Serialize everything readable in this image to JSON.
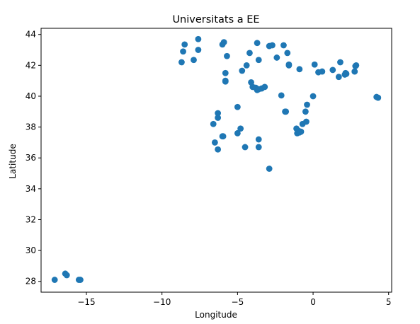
{
  "chart_data": {
    "type": "scatter",
    "title": "Universitats a EE",
    "xlabel": "Longitude",
    "ylabel": "Latitude",
    "xlim": [
      -18.0,
      5.2
    ],
    "ylim": [
      27.3,
      44.4
    ],
    "xticks": [
      -15,
      -10,
      -5,
      0,
      5
    ],
    "yticks": [
      28,
      30,
      32,
      34,
      36,
      38,
      40,
      42,
      44
    ],
    "grid": false,
    "marker_color": "#1f77b4",
    "points": [
      [
        -17.1,
        28.1
      ],
      [
        -16.4,
        28.5
      ],
      [
        -16.3,
        28.4
      ],
      [
        -15.5,
        28.1
      ],
      [
        -15.4,
        28.1
      ],
      [
        -8.7,
        42.2
      ],
      [
        -8.6,
        42.9
      ],
      [
        -8.5,
        43.35
      ],
      [
        -7.9,
        42.35
      ],
      [
        -7.6,
        43.7
      ],
      [
        -7.6,
        43.0
      ],
      [
        -6.0,
        43.35
      ],
      [
        -5.9,
        43.5
      ],
      [
        -5.7,
        42.6
      ],
      [
        -5.8,
        41.5
      ],
      [
        -5.8,
        41.0
      ],
      [
        -5.8,
        40.95
      ],
      [
        -6.3,
        38.9
      ],
      [
        -6.3,
        38.6
      ],
      [
        -6.6,
        38.2
      ],
      [
        -6.5,
        37.0
      ],
      [
        -6.0,
        37.4
      ],
      [
        -5.95,
        37.4
      ],
      [
        -6.3,
        36.55
      ],
      [
        -5.0,
        39.3
      ],
      [
        -4.8,
        37.9
      ],
      [
        -5.0,
        37.6
      ],
      [
        -4.5,
        36.7
      ],
      [
        -4.7,
        41.65
      ],
      [
        -4.4,
        42.0
      ],
      [
        -4.2,
        42.8
      ],
      [
        -3.7,
        43.45
      ],
      [
        -3.6,
        42.35
      ],
      [
        -4.1,
        40.9
      ],
      [
        -4.0,
        40.6
      ],
      [
        -3.8,
        40.55
      ],
      [
        -3.7,
        40.4
      ],
      [
        -3.6,
        40.45
      ],
      [
        -3.4,
        40.5
      ],
      [
        -3.2,
        40.6
      ],
      [
        -3.6,
        37.2
      ],
      [
        -3.6,
        36.7
      ],
      [
        -2.9,
        35.3
      ],
      [
        -2.9,
        43.25
      ],
      [
        -2.7,
        43.3
      ],
      [
        -2.4,
        42.5
      ],
      [
        -1.95,
        43.3
      ],
      [
        -1.7,
        42.8
      ],
      [
        -1.6,
        42.0
      ],
      [
        -1.6,
        42.05
      ],
      [
        -2.1,
        40.05
      ],
      [
        -1.85,
        39.0
      ],
      [
        -1.8,
        39.0
      ],
      [
        -1.1,
        37.9
      ],
      [
        -1.05,
        37.6
      ],
      [
        -0.95,
        37.75
      ],
      [
        -0.9,
        37.65
      ],
      [
        -0.8,
        37.7
      ],
      [
        -0.7,
        38.2
      ],
      [
        -0.5,
        39.0
      ],
      [
        -0.4,
        39.45
      ],
      [
        -0.45,
        38.35
      ],
      [
        -0.9,
        41.75
      ],
      [
        0.0,
        40.0
      ],
      [
        0.1,
        42.05
      ],
      [
        0.35,
        41.55
      ],
      [
        0.6,
        41.6
      ],
      [
        1.3,
        41.7
      ],
      [
        1.8,
        42.2
      ],
      [
        1.7,
        41.25
      ],
      [
        2.1,
        41.4
      ],
      [
        2.2,
        41.45
      ],
      [
        2.15,
        41.5
      ],
      [
        2.75,
        41.6
      ],
      [
        2.8,
        41.95
      ],
      [
        2.85,
        42.0
      ],
      [
        4.2,
        39.95
      ],
      [
        4.3,
        39.9
      ]
    ]
  }
}
